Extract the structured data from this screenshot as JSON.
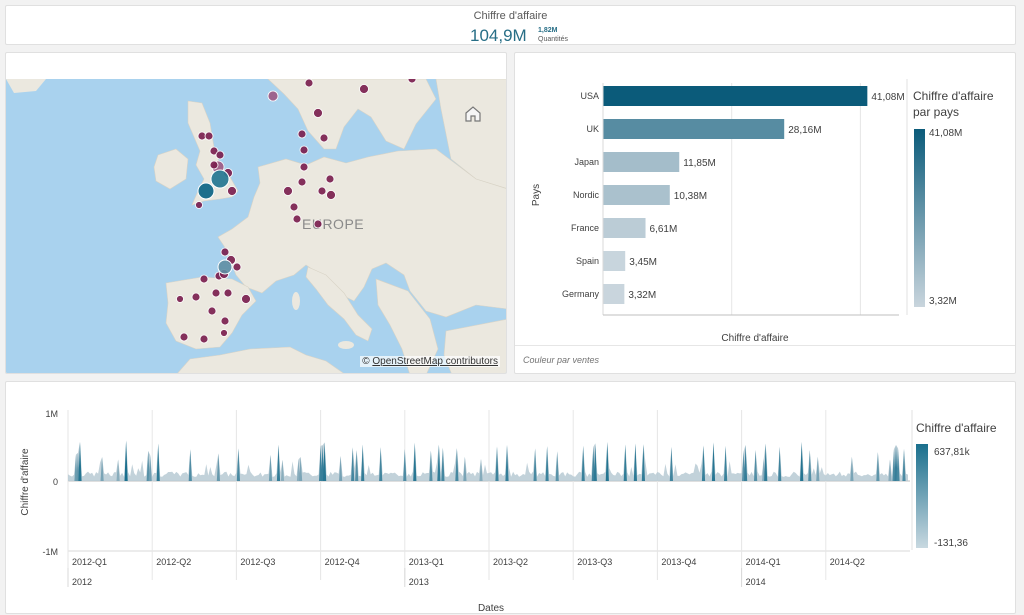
{
  "kpi": {
    "title": "Chiffre d'affaire",
    "value": "104,9M",
    "secondary_value": "1,82M",
    "secondary_label": "Quantités"
  },
  "map": {
    "region_label": "EUROPE",
    "attribution_symbol": "©",
    "attribution_link": "OpenStreetMap contributors",
    "icons": {
      "home": "home-icon"
    },
    "colors": {
      "sea": "#a9d2ee",
      "land": "#ebe8df",
      "point": "#7b1f4f",
      "accent": "#1e6f8c"
    }
  },
  "chart_data": [
    {
      "type": "bar",
      "orientation": "horizontal",
      "categories": [
        "USA",
        "UK",
        "Japan",
        "Nordic",
        "France",
        "Spain",
        "Germany"
      ],
      "values": [
        41.08,
        28.16,
        11.85,
        10.38,
        6.61,
        3.45,
        3.32
      ],
      "value_labels": [
        "41,08M",
        "28,16M",
        "11,85M",
        "10,38M",
        "6,61M",
        "3,45M",
        "3,32M"
      ],
      "xlabel": "Chiffre d'affaire",
      "ylabel": "Pays",
      "legend": {
        "title_line1": "Chiffre d'affaire",
        "title_line2": "par pays",
        "max": "41,08M",
        "min": "3,32M",
        "placement": "right"
      },
      "footnote": "Couleur par ventes",
      "colors": {
        "high": "#0b5b7a",
        "low": "#c9d5dd"
      }
    },
    {
      "type": "area",
      "xlabel": "Dates",
      "ylabel": "Chiffre d'affaire",
      "y_ticks": [
        "1M",
        "0",
        "-1M"
      ],
      "ylim": [
        -1000000,
        1000000
      ],
      "quarters": [
        "2012-Q1",
        "2012-Q2",
        "2012-Q3",
        "2012-Q4",
        "2013-Q1",
        "2013-Q2",
        "2013-Q3",
        "2013-Q4",
        "2014-Q1",
        "2014-Q2"
      ],
      "years": [
        "2012",
        "2013",
        "2014"
      ],
      "legend": {
        "title": "Chiffre d'affaire",
        "max": "637,81k",
        "min": "-131,36",
        "placement": "right"
      },
      "colors": {
        "high": "#1a6f8d",
        "low": "#c8d8e0"
      }
    }
  ]
}
